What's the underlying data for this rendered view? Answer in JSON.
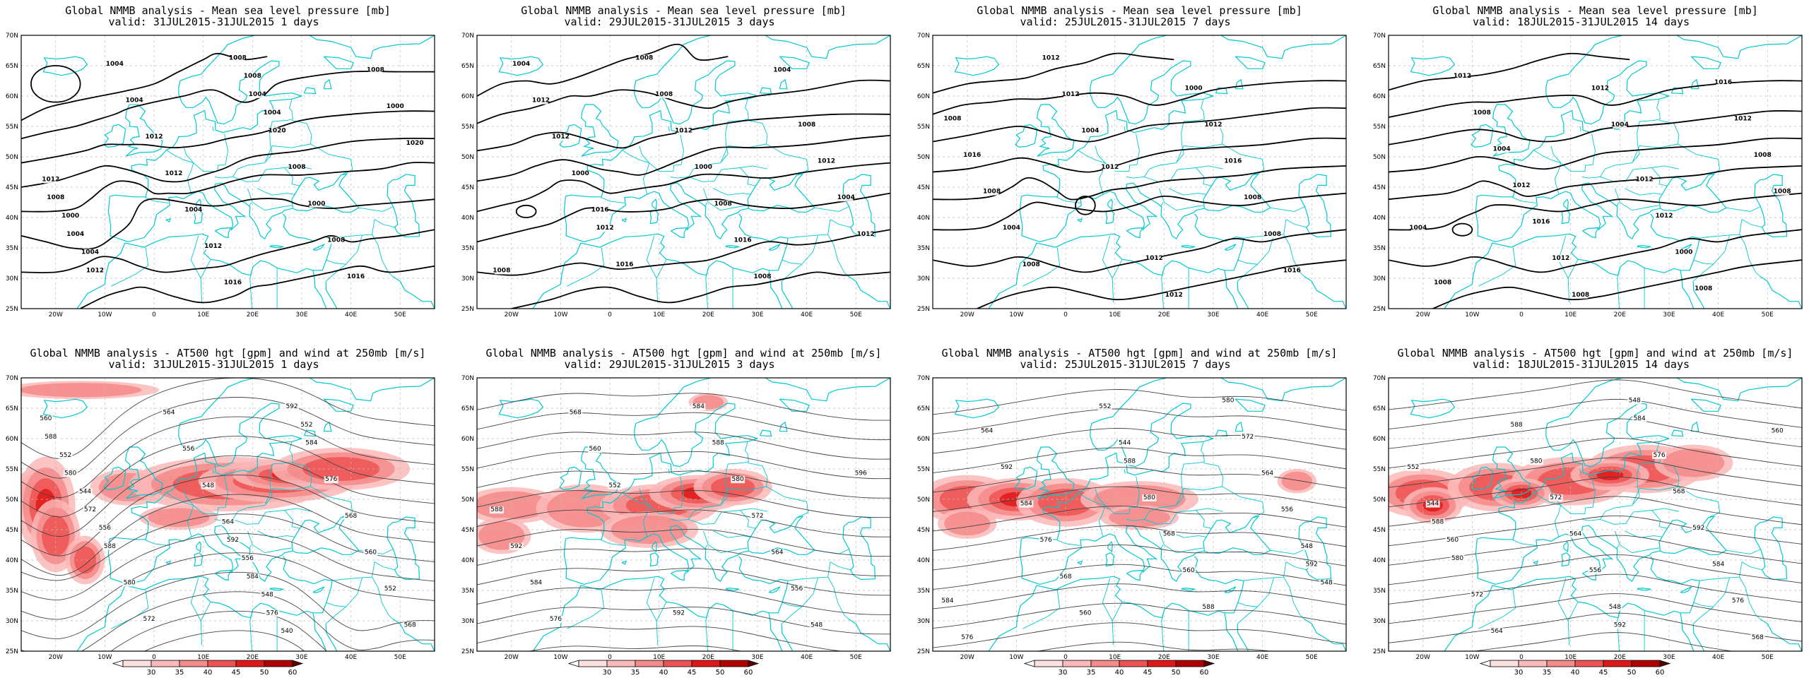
{
  "panels": [
    {
      "title_line1": "Global NMMB analysis - Mean sea level pressure [mb]",
      "title_line2": "valid: 31JUL2015-31JUL2015  1 days",
      "type": "mslp",
      "contour_labels": [
        "1004",
        "1004",
        "1000",
        "1008",
        "1012",
        "1016",
        "1020",
        "1012",
        "1000",
        "1004",
        "1008",
        "1012",
        "1016",
        "1012",
        "1008",
        "1004",
        "1000",
        "1004",
        "1008",
        "1012",
        "1020",
        "1004",
        "1004",
        "1008",
        "1008"
      ]
    },
    {
      "title_line1": "Global NMMB analysis - Mean sea level pressure [mb]",
      "title_line2": "valid: 29JUL2015-31JUL2015  3 days",
      "type": "mslp",
      "contour_labels": [
        "1016",
        "1004",
        "1000",
        "1008",
        "1012",
        "1016",
        "1012",
        "1008",
        "1004",
        "1000",
        "1008",
        "1012",
        "1012",
        "1008",
        "1004",
        "1008",
        "1012",
        "1016",
        "1008",
        "1012"
      ]
    },
    {
      "title_line1": "Global NMMB analysis - Mean sea level pressure [mb]",
      "title_line2": "valid: 25JUL2015-31JUL2015  7 days",
      "type": "mslp",
      "contour_labels": [
        "1012",
        "1016",
        "1004",
        "1008",
        "1012",
        "1008",
        "1012",
        "1016",
        "1008",
        "1012",
        "1004",
        "1000",
        "1008",
        "1012",
        "1016",
        "1012",
        "1008"
      ]
    },
    {
      "title_line1": "Global NMMB analysis - Mean sea level pressure [mb]",
      "title_line2": "valid: 18JUL2015-31JUL2015  14 days",
      "type": "mslp",
      "contour_labels": [
        "1004",
        "1004",
        "1012",
        "1008",
        "1008",
        "1008",
        "1012",
        "1012",
        "1016",
        "1016",
        "1012",
        "1008",
        "1004",
        "1000",
        "1008",
        "1012",
        "1012",
        "1012",
        "1008"
      ]
    },
    {
      "title_line1": "Global NMMB analysis - AT500 hgt [gpm] and wind at 250mb [m/s]",
      "title_line2": "valid: 31JUL2015-31JUL2015  1 days",
      "type": "z500",
      "contour_labels": [
        "552",
        "556",
        "540",
        "544",
        "548",
        "552",
        "556",
        "560",
        "564",
        "568",
        "548",
        "552",
        "556",
        "560",
        "564",
        "568",
        "572",
        "576",
        "580",
        "584",
        "588",
        "592",
        "572",
        "576",
        "580",
        "584",
        "588",
        "592"
      ]
    },
    {
      "title_line1": "Global NMMB analysis - AT500 hgt [gpm] and wind at 250mb [m/s]",
      "title_line2": "valid: 29JUL2015-31JUL2015  3 days",
      "type": "z500",
      "contour_labels": [
        "548",
        "552",
        "556",
        "560",
        "564",
        "568",
        "572",
        "576",
        "580",
        "584",
        "588",
        "592",
        "584",
        "588",
        "592",
        "596"
      ]
    },
    {
      "title_line1": "Global NMMB analysis - AT500 hgt [gpm] and wind at 250mb [m/s]",
      "title_line2": "valid: 25JUL2015-31JUL2015  7 days",
      "type": "z500",
      "contour_labels": [
        "548",
        "544",
        "548",
        "552",
        "556",
        "560",
        "564",
        "568",
        "572",
        "576",
        "580",
        "584",
        "588",
        "592",
        "560",
        "564",
        "568",
        "576",
        "580",
        "584",
        "588",
        "592"
      ]
    },
    {
      "title_line1": "Global NMMB analysis - AT500 hgt [gpm] and wind at 250mb [m/s]",
      "title_line2": "valid: 18JUL2015-31JUL2015  14 days",
      "type": "z500",
      "contour_labels": [
        "560",
        "548",
        "544",
        "548",
        "552",
        "556",
        "560",
        "564",
        "568",
        "572",
        "576",
        "580",
        "584",
        "588",
        "592",
        "564",
        "568",
        "572",
        "576",
        "580",
        "584",
        "588",
        "592"
      ]
    }
  ],
  "axes": {
    "lat_labels": [
      "70N",
      "65N",
      "60N",
      "55N",
      "50N",
      "45N",
      "40N",
      "35N",
      "30N",
      "25N"
    ],
    "lon_labels": [
      "20W",
      "10W",
      "0",
      "10E",
      "20E",
      "30E",
      "40E",
      "50E"
    ]
  },
  "colorbar": {
    "ticks": [
      "30",
      "35",
      "40",
      "45",
      "50",
      "60"
    ],
    "colors": [
      "#fde0e0",
      "#fbb9b9",
      "#f58a8a",
      "#ee5353",
      "#e01818",
      "#b00000",
      "#5a0000"
    ]
  },
  "colors": {
    "coast": "#00c8d0",
    "contour_mslp": "#000000",
    "contour_z500": "#444444",
    "grid": "#bbbbbb"
  }
}
